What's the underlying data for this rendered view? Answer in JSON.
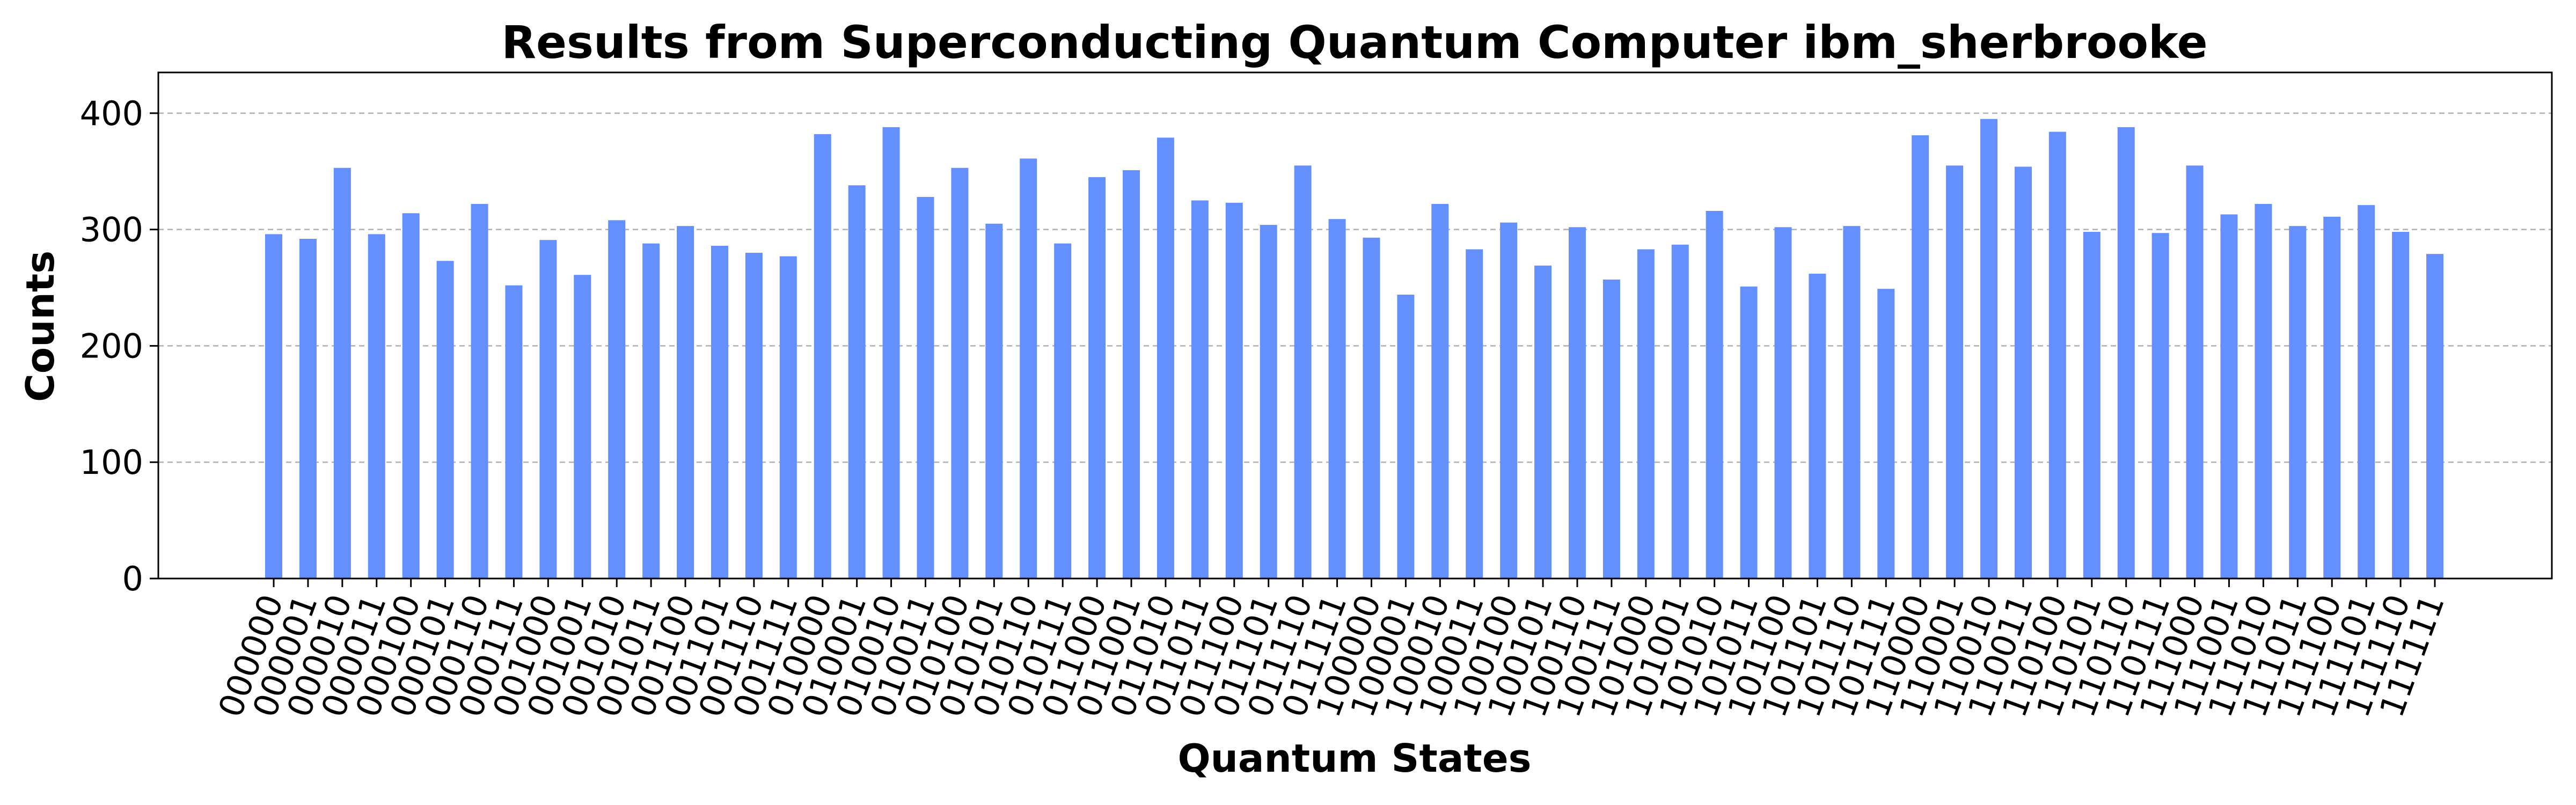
{
  "chart_data": {
    "type": "bar",
    "title": "Results from Superconducting Quantum Computer ibm_sherbrooke",
    "xlabel": "Quantum States",
    "ylabel": "Counts",
    "ylim": [
      0,
      435
    ],
    "yticks": [
      0,
      100,
      200,
      300,
      400
    ],
    "grid": "y-dashed",
    "bar_color": "#648FFF",
    "categories": [
      "000000",
      "000001",
      "000010",
      "000011",
      "000100",
      "000101",
      "000110",
      "000111",
      "001000",
      "001001",
      "001010",
      "001011",
      "001100",
      "001101",
      "001110",
      "001111",
      "010000",
      "010001",
      "010010",
      "010011",
      "010100",
      "010101",
      "010110",
      "010111",
      "011000",
      "011001",
      "011010",
      "011011",
      "011100",
      "011101",
      "011110",
      "011111",
      "100000",
      "100001",
      "100010",
      "100011",
      "100100",
      "100101",
      "100110",
      "100111",
      "101000",
      "101001",
      "101010",
      "101011",
      "101100",
      "101101",
      "101110",
      "101111",
      "110000",
      "110001",
      "110010",
      "110011",
      "110100",
      "110101",
      "110110",
      "110111",
      "111000",
      "111001",
      "111010",
      "111011",
      "111100",
      "111101",
      "111110",
      "111111"
    ],
    "values": [
      296,
      292,
      353,
      296,
      314,
      273,
      322,
      252,
      291,
      261,
      308,
      288,
      303,
      286,
      280,
      277,
      382,
      338,
      388,
      328,
      353,
      305,
      361,
      288,
      345,
      351,
      379,
      325,
      323,
      304,
      355,
      309,
      293,
      244,
      322,
      283,
      306,
      269,
      302,
      257,
      283,
      287,
      316,
      251,
      302,
      262,
      303,
      249,
      381,
      355,
      395,
      354,
      384,
      298,
      388,
      297,
      355,
      313,
      322,
      303,
      311,
      321,
      298,
      279
    ]
  }
}
